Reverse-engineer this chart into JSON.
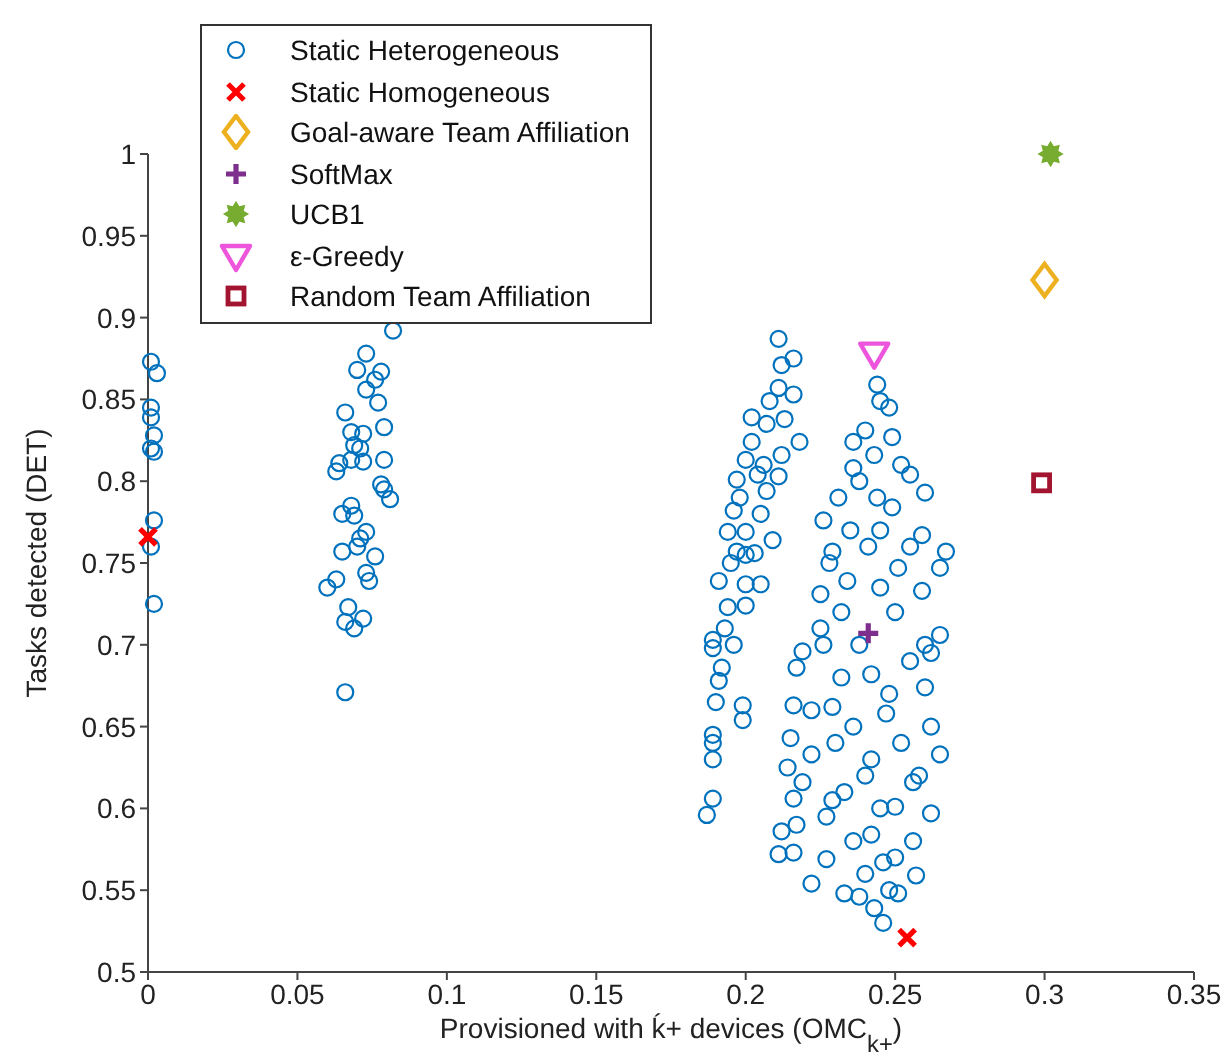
{
  "chart_data": {
    "type": "scatter",
    "xlabel": "Provisioned with ḱ+ devices (OMC$_{k+}$)",
    "ylabel": "Tasks detected (DET)",
    "xlim": [
      0,
      0.35
    ],
    "xticks": [
      0,
      0.05,
      0.1,
      0.15,
      0.2,
      0.25,
      0.3,
      0.35
    ],
    "ylim": [
      0.5,
      1
    ],
    "yticks": [
      0.5,
      0.55,
      0.6,
      0.65,
      0.7,
      0.75,
      0.8,
      0.85,
      0.9,
      0.95,
      1
    ],
    "grid": false,
    "legend": "top left",
    "series": [
      {
        "name": "Static Heterogeneous",
        "color": "#0072bd",
        "marker": "circle",
        "x": [
          0.001,
          0.003,
          0.001,
          0.001,
          0.002,
          0.001,
          0.002,
          0.002,
          0.001,
          0.002,
          0.082,
          0.073,
          0.07,
          0.078,
          0.076,
          0.073,
          0.077,
          0.066,
          0.079,
          0.068,
          0.072,
          0.069,
          0.071,
          0.068,
          0.072,
          0.079,
          0.064,
          0.063,
          0.078,
          0.079,
          0.081,
          0.068,
          0.065,
          0.069,
          0.073,
          0.071,
          0.07,
          0.065,
          0.076,
          0.073,
          0.063,
          0.074,
          0.06,
          0.067,
          0.072,
          0.066,
          0.069,
          0.066,
          0.211,
          0.216,
          0.212,
          0.211,
          0.216,
          0.208,
          0.202,
          0.213,
          0.207,
          0.202,
          0.218,
          0.212,
          0.2,
          0.204,
          0.211,
          0.197,
          0.207,
          0.196,
          0.205,
          0.194,
          0.2,
          0.209,
          0.197,
          0.203,
          0.191,
          0.2,
          0.205,
          0.194,
          0.2,
          0.189,
          0.189,
          0.192,
          0.191,
          0.19,
          0.199,
          0.199,
          0.189,
          0.189,
          0.189,
          0.189,
          0.187,
          0.198,
          0.206,
          0.195,
          0.2,
          0.193,
          0.196,
          0.244,
          0.245,
          0.248,
          0.24,
          0.236,
          0.249,
          0.243,
          0.236,
          0.255,
          0.26,
          0.231,
          0.226,
          0.249,
          0.259,
          0.267,
          0.265,
          0.229,
          0.241,
          0.225,
          0.259,
          0.234,
          0.251,
          0.245,
          0.225,
          0.265,
          0.219,
          0.262,
          0.217,
          0.242,
          0.26,
          0.216,
          0.229,
          0.247,
          0.262,
          0.215,
          0.222,
          0.265,
          0.242,
          0.214,
          0.219,
          0.256,
          0.216,
          0.229,
          0.25,
          0.262,
          0.227,
          0.212,
          0.217,
          0.242,
          0.256,
          0.211,
          0.216,
          0.227,
          0.246,
          0.257,
          0.222,
          0.233,
          0.238,
          0.243,
          0.246,
          0.251,
          0.235,
          0.245,
          0.255,
          0.232,
          0.25,
          0.238,
          0.255,
          0.232,
          0.248,
          0.236,
          0.252,
          0.24,
          0.233,
          0.258,
          0.245,
          0.236,
          0.25,
          0.24,
          0.248,
          0.23,
          0.26,
          0.226,
          0.222,
          0.228,
          0.244,
          0.252,
          0.238
        ],
        "values": [
          0.873,
          0.866,
          0.845,
          0.839,
          0.828,
          0.82,
          0.818,
          0.776,
          0.76,
          0.725,
          0.892,
          0.878,
          0.868,
          0.867,
          0.862,
          0.856,
          0.848,
          0.842,
          0.833,
          0.83,
          0.829,
          0.822,
          0.82,
          0.813,
          0.812,
          0.813,
          0.811,
          0.806,
          0.798,
          0.795,
          0.789,
          0.785,
          0.78,
          0.779,
          0.769,
          0.765,
          0.76,
          0.757,
          0.754,
          0.744,
          0.74,
          0.739,
          0.735,
          0.723,
          0.716,
          0.714,
          0.71,
          0.671,
          0.887,
          0.875,
          0.871,
          0.857,
          0.853,
          0.849,
          0.839,
          0.838,
          0.835,
          0.824,
          0.824,
          0.816,
          0.813,
          0.804,
          0.803,
          0.801,
          0.794,
          0.782,
          0.78,
          0.769,
          0.769,
          0.764,
          0.757,
          0.756,
          0.739,
          0.737,
          0.737,
          0.723,
          0.724,
          0.703,
          0.698,
          0.686,
          0.678,
          0.665,
          0.663,
          0.654,
          0.645,
          0.64,
          0.63,
          0.606,
          0.596,
          0.79,
          0.81,
          0.75,
          0.755,
          0.71,
          0.7,
          0.859,
          0.849,
          0.845,
          0.831,
          0.824,
          0.827,
          0.816,
          0.808,
          0.804,
          0.793,
          0.79,
          0.776,
          0.784,
          0.767,
          0.757,
          0.747,
          0.757,
          0.76,
          0.731,
          0.733,
          0.739,
          0.747,
          0.735,
          0.71,
          0.706,
          0.696,
          0.695,
          0.686,
          0.682,
          0.674,
          0.663,
          0.662,
          0.658,
          0.65,
          0.643,
          0.633,
          0.633,
          0.63,
          0.625,
          0.616,
          0.616,
          0.606,
          0.605,
          0.601,
          0.597,
          0.595,
          0.586,
          0.59,
          0.584,
          0.58,
          0.572,
          0.573,
          0.569,
          0.567,
          0.559,
          0.554,
          0.548,
          0.546,
          0.539,
          0.53,
          0.548,
          0.77,
          0.77,
          0.76,
          0.72,
          0.72,
          0.7,
          0.69,
          0.68,
          0.67,
          0.65,
          0.64,
          0.62,
          0.61,
          0.62,
          0.6,
          0.58,
          0.57,
          0.56,
          0.55,
          0.64,
          0.7,
          0.7,
          0.66,
          0.75,
          0.79,
          0.81,
          0.8
        ]
      },
      {
        "name": "Static Homogeneous",
        "color": "#ff0000",
        "marker": "cross",
        "x": [
          0,
          0.254
        ],
        "values": [
          0.766,
          0.521
        ]
      },
      {
        "name": "Goal-aware Team Affiliation",
        "color": "#edb120",
        "marker": "diamond",
        "x": [
          0.3
        ],
        "values": [
          0.923
        ]
      },
      {
        "name": "SoftMax",
        "color": "#7e2f8e",
        "marker": "plus",
        "x": [
          0.241
        ],
        "values": [
          0.707
        ]
      },
      {
        "name": "UCB1",
        "color": "#77ac30",
        "marker": "star",
        "x": [
          0.302
        ],
        "values": [
          1.0
        ]
      },
      {
        "name": "ε-Greedy",
        "color": "#ee55dd",
        "marker": "triangle-down",
        "x": [
          0.243
        ],
        "values": [
          0.878
        ]
      },
      {
        "name": "Random Team Affiliation",
        "color": "#a2142f",
        "marker": "square",
        "x": [
          0.299
        ],
        "values": [
          0.799
        ]
      }
    ]
  }
}
